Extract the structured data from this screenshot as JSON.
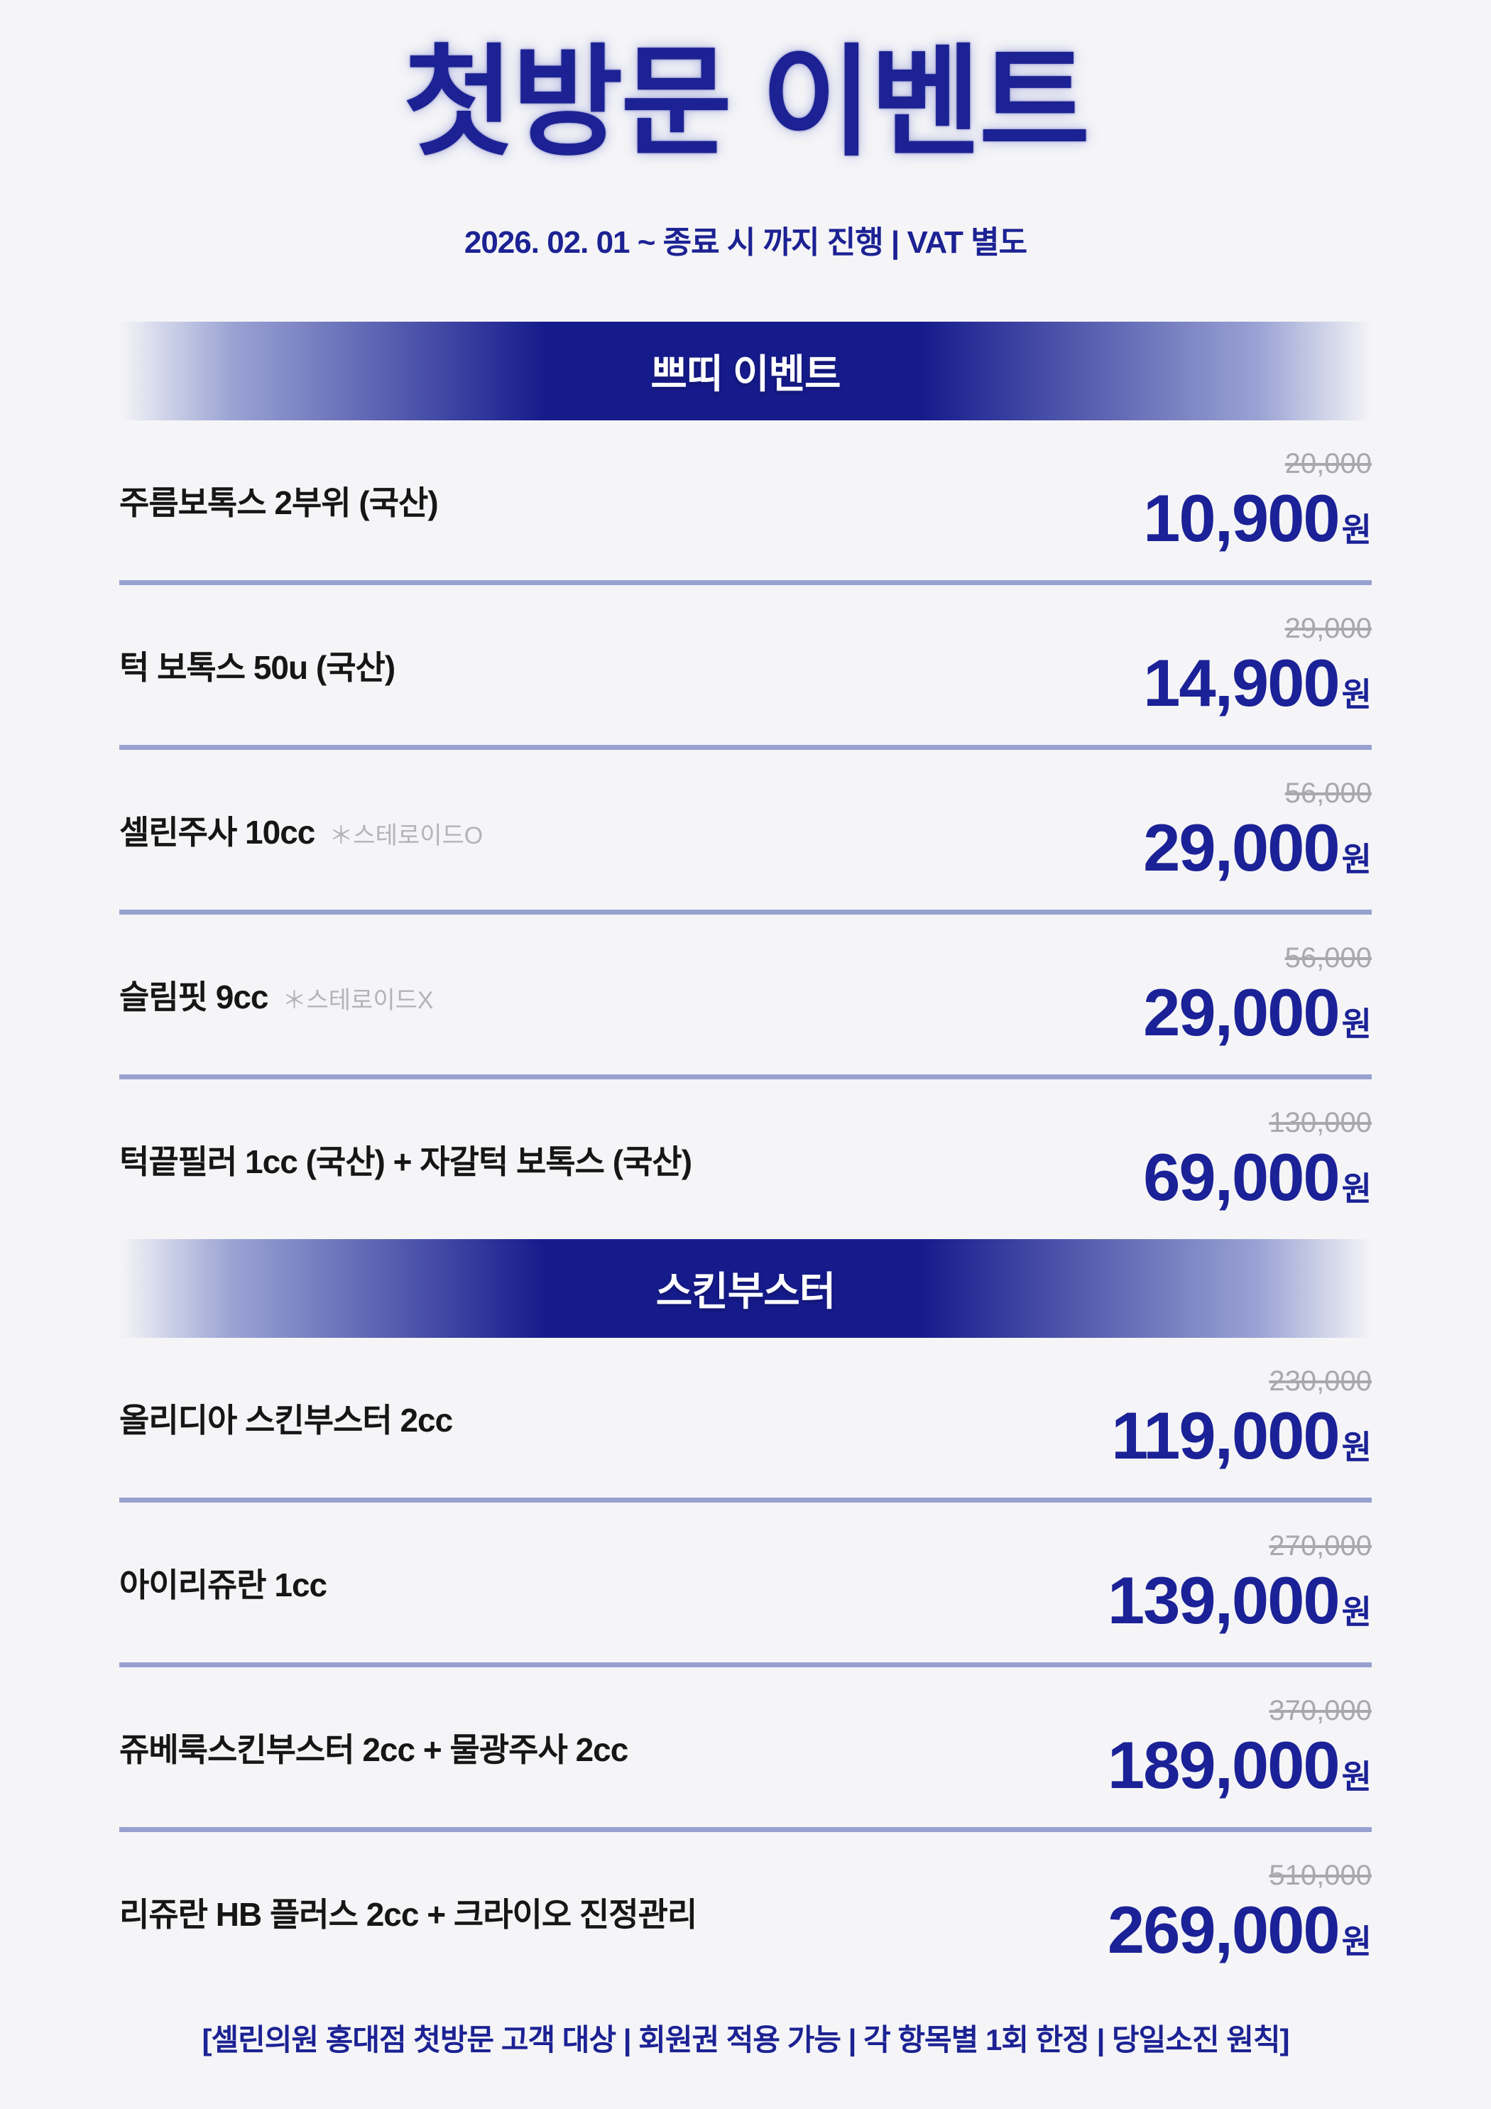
{
  "header": {
    "title": "첫방문 이벤트",
    "subtitle": "2026. 02. 01 ~ 종료 시 까지 진행 | VAT 별도"
  },
  "currency_suffix": "원",
  "sections": [
    {
      "label": "쁘띠 이벤트",
      "items": [
        {
          "name": "주름보톡스 2부위 (국산)",
          "old_price": "20,000",
          "price": "10,900"
        },
        {
          "name": "턱 보톡스 50u (국산)",
          "old_price": "29,000",
          "price": "14,900"
        },
        {
          "name": "셀린주사 10cc",
          "note": "＊스테로이드O",
          "old_price": "56,000",
          "price": "29,000"
        },
        {
          "name": "슬림핏 9cc",
          "note": "＊스테로이드X",
          "old_price": "56,000",
          "price": "29,000"
        },
        {
          "name": "턱끝필러 1cc (국산) + 자갈턱 보톡스 (국산)",
          "old_price": "130,000",
          "price": "69,000"
        }
      ]
    },
    {
      "label": "스킨부스터",
      "items": [
        {
          "name": "올리디아 스킨부스터 2cc",
          "old_price": "230,000",
          "price": "119,000"
        },
        {
          "name": "아이리쥬란 1cc",
          "old_price": "270,000",
          "price": "139,000"
        },
        {
          "name": "쥬베룩스킨부스터 2cc + 물광주사 2cc",
          "old_price": "370,000",
          "price": "189,000"
        },
        {
          "name": "리쥬란 HB 플러스 2cc + 크라이오 진정관리",
          "old_price": "510,000",
          "price": "269,000"
        }
      ]
    }
  ],
  "footer": {
    "text": "[셀린의원 홍대점 첫방문 고객 대상 | 회원권 적용 가능 | 각 항목별 1회 한정 | 당일소진 원칙]"
  },
  "colors": {
    "background": "#f5f5f7",
    "primary_blue": "#1c2293",
    "banner_blue": "#161b8c",
    "banner_edge": "#9aa3d4",
    "price_blue": "#1b2196",
    "old_price_gray": "#a8a8ad",
    "note_gray": "#b4b4b8",
    "divider": "#97a1d0",
    "item_text": "#161616"
  }
}
